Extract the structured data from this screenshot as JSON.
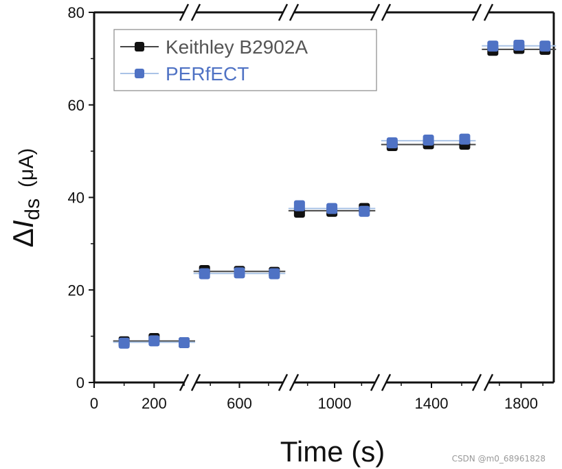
{
  "chart_data": {
    "type": "scatter",
    "y_axis_title_prefix": "Δ",
    "y_axis_title_italic": "I",
    "y_axis_title_subscript": "ds",
    "y_axis_title_unit": "(μA)",
    "x_axis_title": "Time (s)",
    "ylim": [
      0,
      80
    ],
    "y_ticks": [
      0,
      20,
      40,
      60,
      80
    ],
    "x_axis_break_style": "broken axis with slash marks between segments",
    "x_segments": [
      {
        "xlim": [
          0,
          300
        ],
        "tick_labels": [
          {
            "value": 0,
            "label": "0"
          },
          {
            "value": 200,
            "label": "200"
          }
        ]
      },
      {
        "xlim": [
          450,
          750
        ],
        "tick_labels": [
          {
            "value": 600,
            "label": "600"
          }
        ]
      },
      {
        "xlim": [
          850,
          1150
        ],
        "tick_labels": [
          {
            "value": 1000,
            "label": "1000"
          }
        ]
      },
      {
        "xlim": [
          1250,
          1550
        ],
        "tick_labels": [
          {
            "value": 1400,
            "label": "1400"
          }
        ]
      },
      {
        "xlim": [
          1650,
          1950
        ],
        "tick_labels": [
          {
            "value": 1800,
            "label": "1800"
          }
        ]
      }
    ],
    "series": [
      {
        "name": "Keithley B2902A",
        "color": "#111111",
        "line_color": "#444444",
        "marker": "square",
        "groups": [
          {
            "x": [
              100,
              200,
              300
            ],
            "y": [
              8.8,
              9.5,
              8.6
            ]
          },
          {
            "x": [
              480,
              600,
              720
            ],
            "y": [
              24.2,
              24.0,
              23.8
            ]
          },
          {
            "x": [
              870,
              990,
              1110
            ],
            "y": [
              36.8,
              37.0,
              37.6
            ]
          },
          {
            "x": [
              1270,
              1390,
              1510
            ],
            "y": [
              51.2,
              51.6,
              51.5
            ]
          },
          {
            "x": [
              1670,
              1790,
              1910
            ],
            "y": [
              71.8,
              72.2,
              72.0
            ]
          }
        ]
      },
      {
        "name": "PERfECT",
        "color": "#4f72c4",
        "line_color": "#a9c3e6",
        "marker": "square",
        "groups": [
          {
            "x": [
              100,
              200,
              300
            ],
            "y": [
              8.5,
              9.0,
              8.6
            ]
          },
          {
            "x": [
              480,
              600,
              720
            ],
            "y": [
              23.5,
              23.7,
              23.5
            ]
          },
          {
            "x": [
              870,
              990,
              1110
            ],
            "y": [
              38.2,
              37.6,
              37.0
            ]
          },
          {
            "x": [
              1270,
              1390,
              1510
            ],
            "y": [
              51.8,
              52.4,
              52.6
            ]
          },
          {
            "x": [
              1670,
              1790,
              1910
            ],
            "y": [
              72.7,
              72.9,
              72.7
            ]
          }
        ]
      }
    ],
    "legend_position": "top-left",
    "grid": false
  },
  "watermark": "CSDN @m0_68961828"
}
